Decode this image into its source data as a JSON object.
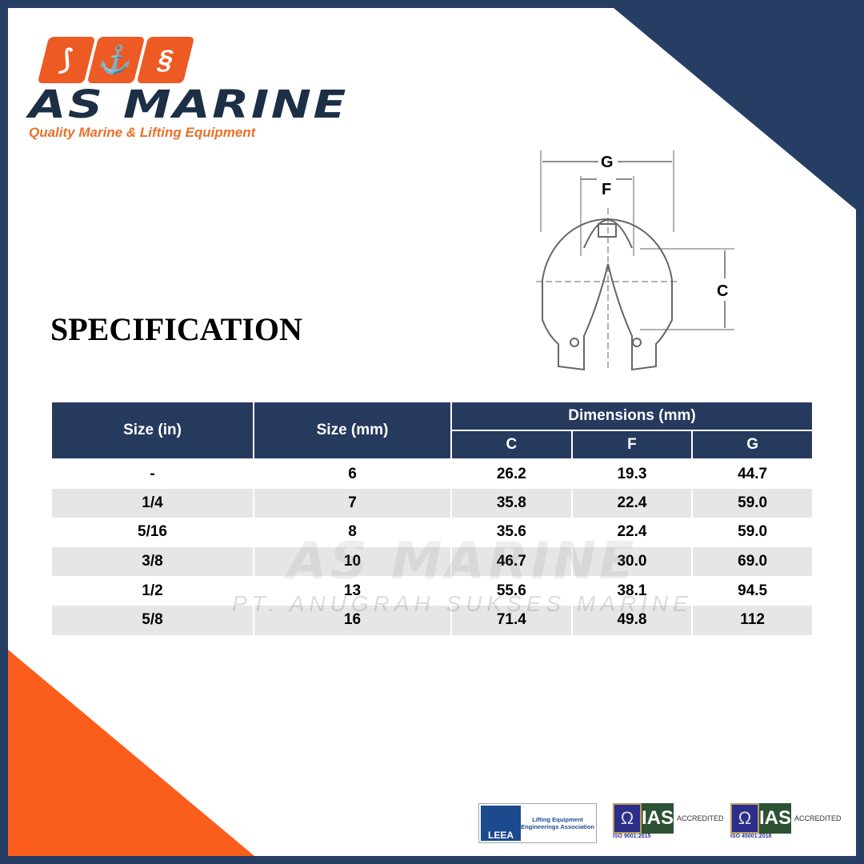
{
  "brand": {
    "name": "AS MARINE",
    "tagline": "Quality Marine & Lifting Equipment",
    "colors": {
      "navy": "#263e64",
      "orange": "#fb5d1c"
    }
  },
  "title": "SPECIFICATION",
  "diagram": {
    "labels": [
      "G",
      "F",
      "C"
    ]
  },
  "table": {
    "headers": {
      "size_in": "Size (in)",
      "size_mm": "Size (mm)",
      "dimensions": "Dimensions (mm)",
      "c": "C",
      "f": "F",
      "g": "G"
    },
    "rows": [
      [
        "-",
        "6",
        "26.2",
        "19.3",
        "44.7"
      ],
      [
        "1/4",
        "7",
        "35.8",
        "22.4",
        "59.0"
      ],
      [
        "5/16",
        "8",
        "35.6",
        "22.4",
        "59.0"
      ],
      [
        "3/8",
        "10",
        "46.7",
        "30.0",
        "69.0"
      ],
      [
        "1/2",
        "13",
        "55.6",
        "38.1",
        "94.5"
      ],
      [
        "5/8",
        "16",
        "71.4",
        "49.8",
        "112"
      ]
    ]
  },
  "watermark": {
    "name": "AS MARINE",
    "company": "PT. ANUGRAH SUKSES MARINE"
  },
  "certs": {
    "leea": {
      "mark": "LEEA",
      "text": "Lifting Equipment Engineerings Association"
    },
    "ias1": {
      "brand": "IAS",
      "accredited": "ACCREDITED",
      "iso": "ISO 9001:2015"
    },
    "ias2": {
      "brand": "IAS",
      "accredited": "ACCREDITED",
      "iso": "ISO 45001:2018"
    }
  }
}
